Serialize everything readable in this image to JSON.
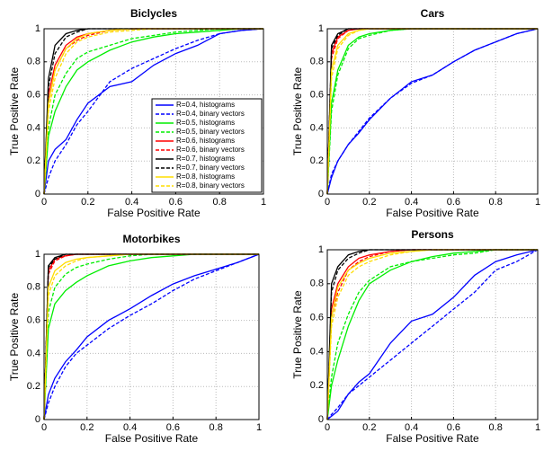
{
  "chart_data": [
    {
      "type": "line",
      "title": "Biclycles",
      "xlabel": "False Positive Rate",
      "ylabel": "True Positive Rate",
      "xlim": [
        0,
        1
      ],
      "ylim": [
        0,
        1
      ],
      "xticks": [
        0,
        0.2,
        0.4,
        0.6,
        0.8,
        1
      ],
      "yticks": [
        0,
        0.2,
        0.4,
        0.6,
        0.8,
        1
      ],
      "grid": true,
      "legend": "lower right",
      "x": [
        0,
        0.02,
        0.05,
        0.1,
        0.15,
        0.2,
        0.3,
        0.4,
        0.5,
        0.6,
        0.7,
        0.8,
        0.9,
        1
      ],
      "series": [
        {
          "name": "R=0.4, histograms",
          "color": "#0000ff",
          "style": "solid",
          "values": [
            0,
            0.2,
            0.27,
            0.33,
            0.45,
            0.55,
            0.65,
            0.68,
            0.78,
            0.85,
            0.9,
            0.97,
            0.99,
            1
          ]
        },
        {
          "name": "R=0.4, binary vectors",
          "color": "#0000ff",
          "style": "dashed",
          "values": [
            0,
            0.1,
            0.2,
            0.3,
            0.42,
            0.5,
            0.68,
            0.76,
            0.82,
            0.88,
            0.93,
            0.97,
            0.99,
            1
          ]
        },
        {
          "name": "R=0.5, histograms",
          "color": "#00ee00",
          "style": "solid",
          "values": [
            0,
            0.35,
            0.5,
            0.65,
            0.75,
            0.8,
            0.87,
            0.92,
            0.95,
            0.97,
            0.98,
            0.99,
            1,
            1
          ]
        },
        {
          "name": "R=0.5, binary vectors",
          "color": "#00ee00",
          "style": "dashed",
          "values": [
            0,
            0.4,
            0.6,
            0.73,
            0.82,
            0.86,
            0.9,
            0.94,
            0.96,
            0.98,
            0.99,
            1,
            1,
            1
          ]
        },
        {
          "name": "R=0.6, histograms",
          "color": "#ff0000",
          "style": "solid",
          "values": [
            0,
            0.6,
            0.78,
            0.9,
            0.95,
            0.97,
            0.99,
            1,
            1,
            1,
            1,
            1,
            1,
            1
          ]
        },
        {
          "name": "R=0.6, binary vectors",
          "color": "#ff0000",
          "style": "dashed",
          "values": [
            0,
            0.55,
            0.75,
            0.88,
            0.93,
            0.96,
            0.99,
            1,
            1,
            1,
            1,
            1,
            1,
            1
          ]
        },
        {
          "name": "R=0.7, histograms",
          "color": "#000000",
          "style": "solid",
          "values": [
            0,
            0.7,
            0.9,
            0.97,
            0.99,
            1,
            1,
            1,
            1,
            1,
            1,
            1,
            1,
            1
          ]
        },
        {
          "name": "R=0.7, binary vectors",
          "color": "#000000",
          "style": "dashed",
          "values": [
            0,
            0.65,
            0.85,
            0.95,
            0.98,
            1,
            1,
            1,
            1,
            1,
            1,
            1,
            1,
            1
          ]
        },
        {
          "name": "R=0.8, histograms",
          "color": "#ffdd00",
          "style": "solid",
          "values": [
            0,
            0.55,
            0.75,
            0.88,
            0.94,
            0.97,
            0.99,
            1,
            1,
            1,
            1,
            1,
            1,
            1
          ]
        },
        {
          "name": "R=0.8, binary vectors",
          "color": "#ffdd00",
          "style": "dashed",
          "values": [
            0,
            0.5,
            0.7,
            0.85,
            0.92,
            0.95,
            0.98,
            0.99,
            1,
            1,
            1,
            1,
            1,
            1
          ]
        }
      ]
    },
    {
      "type": "line",
      "title": "Cars",
      "xlabel": "False Positive Rate",
      "ylabel": "True Positive Rate",
      "xlim": [
        0,
        1
      ],
      "ylim": [
        0,
        1
      ],
      "xticks": [
        0,
        0.2,
        0.4,
        0.6,
        0.8,
        1
      ],
      "yticks": [
        0,
        0.2,
        0.4,
        0.6,
        0.8,
        1
      ],
      "grid": true,
      "x": [
        0,
        0.02,
        0.05,
        0.1,
        0.15,
        0.2,
        0.3,
        0.4,
        0.5,
        0.6,
        0.7,
        0.8,
        0.9,
        1
      ],
      "series": [
        {
          "color": "#0000ff",
          "style": "solid",
          "values": [
            0,
            0.1,
            0.2,
            0.3,
            0.37,
            0.45,
            0.58,
            0.68,
            0.72,
            0.8,
            0.87,
            0.92,
            0.97,
            1
          ]
        },
        {
          "color": "#0000ff",
          "style": "dashed",
          "values": [
            0,
            0.12,
            0.2,
            0.3,
            0.38,
            0.46,
            0.58,
            0.67,
            0.72,
            0.8,
            0.87,
            0.92,
            0.97,
            1
          ]
        },
        {
          "color": "#00ee00",
          "style": "solid",
          "values": [
            0,
            0.55,
            0.75,
            0.9,
            0.95,
            0.97,
            0.99,
            1,
            1,
            1,
            1,
            1,
            1,
            1
          ]
        },
        {
          "color": "#00ee00",
          "style": "dashed",
          "values": [
            0,
            0.5,
            0.72,
            0.88,
            0.94,
            0.96,
            0.99,
            1,
            1,
            1,
            1,
            1,
            1,
            1
          ]
        },
        {
          "color": "#ff0000",
          "style": "solid",
          "values": [
            0,
            0.85,
            0.95,
            0.99,
            1,
            1,
            1,
            1,
            1,
            1,
            1,
            1,
            1,
            1
          ]
        },
        {
          "color": "#ff0000",
          "style": "dashed",
          "values": [
            0,
            0.82,
            0.94,
            0.99,
            1,
            1,
            1,
            1,
            1,
            1,
            1,
            1,
            1,
            1
          ]
        },
        {
          "color": "#000000",
          "style": "solid",
          "values": [
            0,
            0.9,
            0.97,
            1,
            1,
            1,
            1,
            1,
            1,
            1,
            1,
            1,
            1,
            1
          ]
        },
        {
          "color": "#000000",
          "style": "dashed",
          "values": [
            0,
            0.88,
            0.96,
            1,
            1,
            1,
            1,
            1,
            1,
            1,
            1,
            1,
            1,
            1
          ]
        },
        {
          "color": "#ffdd00",
          "style": "solid",
          "values": [
            0,
            0.75,
            0.9,
            0.97,
            0.99,
            1,
            1,
            1,
            1,
            1,
            1,
            1,
            1,
            1
          ]
        },
        {
          "color": "#ffdd00",
          "style": "dashed",
          "values": [
            0,
            0.7,
            0.88,
            0.96,
            0.99,
            1,
            1,
            1,
            1,
            1,
            1,
            1,
            1,
            1
          ]
        }
      ]
    },
    {
      "type": "line",
      "title": "Motorbikes",
      "xlabel": "False Positive Rate",
      "ylabel": "True Positive Rate",
      "xlim": [
        0,
        1
      ],
      "ylim": [
        0,
        1
      ],
      "xticks": [
        0,
        0.2,
        0.4,
        0.6,
        0.8,
        1
      ],
      "yticks": [
        0,
        0.2,
        0.4,
        0.6,
        0.8,
        1
      ],
      "grid": true,
      "x": [
        0,
        0.02,
        0.05,
        0.1,
        0.15,
        0.2,
        0.3,
        0.4,
        0.5,
        0.6,
        0.7,
        0.8,
        0.9,
        1
      ],
      "series": [
        {
          "color": "#0000ff",
          "style": "solid",
          "values": [
            0,
            0.15,
            0.25,
            0.35,
            0.42,
            0.5,
            0.6,
            0.67,
            0.75,
            0.82,
            0.87,
            0.91,
            0.95,
            1
          ]
        },
        {
          "color": "#0000ff",
          "style": "dashed",
          "values": [
            0,
            0.1,
            0.2,
            0.32,
            0.4,
            0.45,
            0.55,
            0.63,
            0.7,
            0.78,
            0.85,
            0.9,
            0.95,
            1
          ]
        },
        {
          "color": "#00ee00",
          "style": "solid",
          "values": [
            0,
            0.55,
            0.7,
            0.78,
            0.83,
            0.87,
            0.93,
            0.96,
            0.98,
            0.99,
            1,
            1,
            1,
            1
          ]
        },
        {
          "color": "#00ee00",
          "style": "dashed",
          "values": [
            0,
            0.65,
            0.8,
            0.88,
            0.92,
            0.94,
            0.97,
            0.99,
            1,
            1,
            1,
            1,
            1,
            1
          ]
        },
        {
          "color": "#ff0000",
          "style": "solid",
          "values": [
            0,
            0.9,
            0.97,
            0.99,
            1,
            1,
            1,
            1,
            1,
            1,
            1,
            1,
            1,
            1
          ]
        },
        {
          "color": "#ff0000",
          "style": "dashed",
          "values": [
            0,
            0.88,
            0.96,
            0.99,
            1,
            1,
            1,
            1,
            1,
            1,
            1,
            1,
            1,
            1
          ]
        },
        {
          "color": "#000000",
          "style": "solid",
          "values": [
            0,
            0.93,
            0.98,
            1,
            1,
            1,
            1,
            1,
            1,
            1,
            1,
            1,
            1,
            1
          ]
        },
        {
          "color": "#000000",
          "style": "dashed",
          "values": [
            0,
            0.92,
            0.97,
            1,
            1,
            1,
            1,
            1,
            1,
            1,
            1,
            1,
            1,
            1
          ]
        },
        {
          "color": "#ffdd00",
          "style": "solid",
          "values": [
            0,
            0.8,
            0.9,
            0.95,
            0.97,
            0.98,
            0.99,
            1,
            1,
            1,
            1,
            1,
            1,
            1
          ]
        },
        {
          "color": "#ffdd00",
          "style": "dashed",
          "values": [
            0,
            0.75,
            0.87,
            0.93,
            0.96,
            0.98,
            0.99,
            1,
            1,
            1,
            1,
            1,
            1,
            1
          ]
        }
      ]
    },
    {
      "type": "line",
      "title": "Persons",
      "xlabel": "False Positive Rate",
      "ylabel": "True Positive Rate",
      "xlim": [
        0,
        1
      ],
      "ylim": [
        0,
        1
      ],
      "xticks": [
        0,
        0.2,
        0.4,
        0.6,
        0.8,
        1
      ],
      "yticks": [
        0,
        0.2,
        0.4,
        0.6,
        0.8,
        1
      ],
      "grid": true,
      "x": [
        0,
        0.02,
        0.05,
        0.1,
        0.15,
        0.2,
        0.3,
        0.4,
        0.5,
        0.6,
        0.7,
        0.8,
        0.9,
        1
      ],
      "series": [
        {
          "color": "#0000ff",
          "style": "solid",
          "values": [
            0,
            0.02,
            0.05,
            0.15,
            0.22,
            0.27,
            0.45,
            0.58,
            0.62,
            0.72,
            0.85,
            0.93,
            0.97,
            1
          ]
        },
        {
          "color": "#0000ff",
          "style": "dashed",
          "values": [
            0,
            0.03,
            0.07,
            0.15,
            0.2,
            0.25,
            0.35,
            0.45,
            0.55,
            0.65,
            0.75,
            0.88,
            0.93,
            1
          ]
        },
        {
          "color": "#00ee00",
          "style": "solid",
          "values": [
            0,
            0.2,
            0.35,
            0.55,
            0.7,
            0.8,
            0.88,
            0.93,
            0.96,
            0.98,
            0.99,
            1,
            1,
            1
          ]
        },
        {
          "color": "#00ee00",
          "style": "dashed",
          "values": [
            0,
            0.25,
            0.45,
            0.62,
            0.75,
            0.82,
            0.9,
            0.93,
            0.95,
            0.97,
            0.98,
            1,
            1,
            1
          ]
        },
        {
          "color": "#ff0000",
          "style": "solid",
          "values": [
            0,
            0.65,
            0.8,
            0.9,
            0.95,
            0.97,
            0.99,
            1,
            1,
            1,
            1,
            1,
            1,
            1
          ]
        },
        {
          "color": "#ff0000",
          "style": "dashed",
          "values": [
            0,
            0.6,
            0.75,
            0.88,
            0.93,
            0.96,
            0.99,
            1,
            1,
            1,
            1,
            1,
            1,
            1
          ]
        },
        {
          "color": "#000000",
          "style": "solid",
          "values": [
            0,
            0.8,
            0.9,
            0.97,
            0.99,
            1,
            1,
            1,
            1,
            1,
            1,
            1,
            1,
            1
          ]
        },
        {
          "color": "#000000",
          "style": "dashed",
          "values": [
            0,
            0.75,
            0.88,
            0.95,
            0.98,
            1,
            1,
            1,
            1,
            1,
            1,
            1,
            1,
            1
          ]
        },
        {
          "color": "#ffdd00",
          "style": "solid",
          "values": [
            0,
            0.6,
            0.78,
            0.88,
            0.92,
            0.95,
            0.98,
            0.99,
            1,
            1,
            1,
            1,
            1,
            1
          ]
        },
        {
          "color": "#ffdd00",
          "style": "dashed",
          "values": [
            0,
            0.55,
            0.72,
            0.85,
            0.9,
            0.93,
            0.97,
            0.99,
            1,
            1,
            1,
            1,
            1,
            1
          ]
        }
      ]
    }
  ]
}
